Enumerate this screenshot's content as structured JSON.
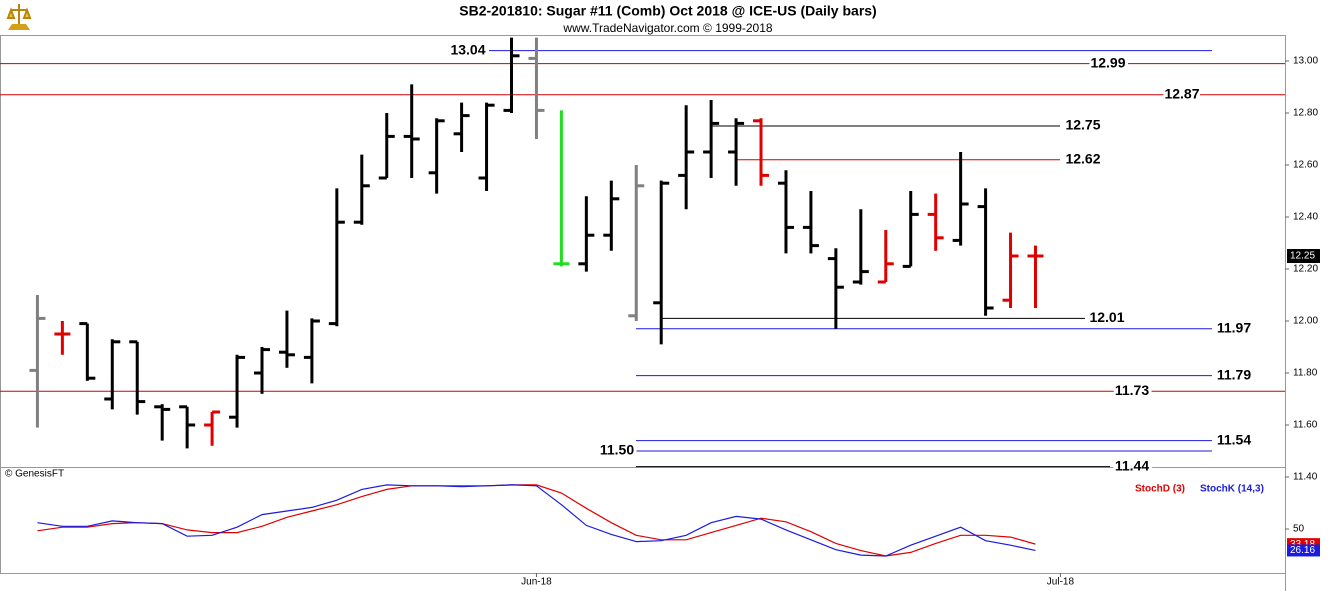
{
  "chart_data": [
    {
      "type": "ohlc",
      "title": "SB2-201810:  Sugar #11 (Comb) Oct 2018 @ ICE-US  (Daily bars)",
      "subtitle": "www.TradeNavigator.com © 1999-2018",
      "source": "© GenesisFT",
      "open": [
        11.81,
        11.95,
        11.99,
        11.7,
        11.92,
        11.67,
        11.67,
        11.6,
        11.63,
        11.8,
        11.88,
        11.86,
        11.99,
        12.38,
        12.55,
        12.71,
        12.57,
        12.72,
        12.55,
        12.81,
        13.01,
        12.22,
        12.22,
        12.33,
        12.02,
        12.07,
        12.56,
        12.65,
        12.65,
        12.77,
        12.53,
        12.36,
        12.24,
        12.15,
        12.15,
        12.21,
        12.41,
        12.31,
        12.44,
        12.08,
        12.25
      ],
      "high": [
        12.1,
        12.0,
        11.99,
        11.93,
        11.92,
        11.68,
        11.67,
        11.65,
        11.87,
        11.9,
        12.04,
        12.01,
        12.51,
        12.64,
        12.8,
        12.91,
        12.78,
        12.84,
        12.84,
        13.09,
        13.09,
        12.81,
        12.48,
        12.54,
        12.6,
        12.54,
        12.83,
        12.85,
        12.78,
        12.78,
        12.58,
        12.5,
        12.28,
        12.43,
        12.35,
        12.5,
        12.49,
        12.65,
        12.51,
        12.34,
        12.29
      ],
      "low": [
        11.59,
        11.87,
        11.77,
        11.66,
        11.64,
        11.54,
        11.51,
        11.52,
        11.59,
        11.72,
        11.82,
        11.76,
        11.98,
        12.37,
        12.55,
        12.55,
        12.49,
        12.65,
        12.5,
        12.8,
        12.7,
        12.21,
        12.19,
        12.27,
        12.0,
        11.91,
        12.43,
        12.55,
        12.52,
        12.52,
        12.26,
        12.26,
        11.97,
        12.14,
        12.15,
        12.21,
        12.27,
        12.29,
        12.02,
        12.05,
        12.05
      ],
      "close": [
        12.01,
        11.95,
        11.78,
        11.92,
        11.69,
        11.66,
        11.6,
        11.65,
        11.86,
        11.89,
        11.87,
        12.0,
        12.38,
        12.52,
        12.71,
        12.7,
        12.77,
        12.79,
        12.83,
        13.02,
        12.81,
        12.22,
        12.33,
        12.47,
        12.52,
        12.53,
        12.65,
        12.76,
        12.76,
        12.56,
        12.36,
        12.29,
        12.13,
        12.19,
        12.22,
        12.41,
        12.32,
        12.45,
        12.05,
        12.25,
        12.25
      ],
      "colors": [
        "#808080",
        "#e00000",
        "#000000",
        "#000000",
        "#000000",
        "#000000",
        "#000000",
        "#e00000",
        "#000000",
        "#000000",
        "#000000",
        "#000000",
        "#000000",
        "#000000",
        "#000000",
        "#000000",
        "#000000",
        "#000000",
        "#000000",
        "#000000",
        "#808080",
        "#22dd22",
        "#000000",
        "#000000",
        "#808080",
        "#000000",
        "#000000",
        "#000000",
        "#000000",
        "#e00000",
        "#000000",
        "#000000",
        "#000000",
        "#000000",
        "#e00000",
        "#000000",
        "#e00000",
        "#000000",
        "#000000",
        "#e00000",
        "#e00000"
      ],
      "xlim": [
        -1.5,
        50
      ],
      "ylim": [
        11.4,
        13.1
      ],
      "yticks": [
        {
          "value": 11.4,
          "label": "11.40"
        },
        {
          "value": 11.6,
          "label": "11.60"
        },
        {
          "value": 11.8,
          "label": "11.80"
        },
        {
          "value": 12.0,
          "label": "12.00"
        },
        {
          "value": 12.2,
          "label": "12.20"
        },
        {
          "value": 12.4,
          "label": "12.40"
        },
        {
          "value": 12.6,
          "label": "12.60"
        },
        {
          "value": 12.8,
          "label": "12.80"
        },
        {
          "value": 13.0,
          "label": "13.00"
        }
      ],
      "levels": [
        {
          "value": 13.04,
          "color": "#1a1ae0"
        },
        {
          "value": 12.99,
          "color": "#d00000"
        },
        {
          "value": 12.87,
          "color": "#d00000"
        },
        {
          "value": 12.75,
          "color": "#000000"
        },
        {
          "value": 12.62,
          "color": "#d00000"
        },
        {
          "value": 12.01,
          "color": "#000000"
        },
        {
          "value": 11.97,
          "color": "#1a1ae0"
        },
        {
          "value": 11.79,
          "color": "#1a1ae0"
        },
        {
          "value": 11.73,
          "color": "#d00000"
        },
        {
          "value": 11.54,
          "color": "#1a1ae0"
        },
        {
          "value": 11.5,
          "label": "11.50",
          "color": "#1a1ae0"
        },
        {
          "value": 11.44,
          "color": "#000000"
        }
      ],
      "last": 12.25
    },
    {
      "type": "line",
      "xlim": [
        -1.5,
        50
      ],
      "ylim": [
        0,
        100
      ],
      "yticks": [
        50
      ],
      "xticks": [
        {
          "value": 20,
          "label": "Jun-18"
        },
        {
          "value": 41,
          "label": "Jul-18"
        }
      ],
      "series": [
        {
          "name": "StochD (3)",
          "color": "#e00000",
          "values": [
            48,
            52,
            52,
            56,
            57,
            56,
            49,
            46,
            46,
            53,
            63,
            70,
            77,
            86,
            94,
            98,
            98,
            98,
            98,
            99,
            99,
            90,
            73,
            57,
            43,
            38,
            38,
            46,
            54,
            62,
            58,
            47,
            34,
            26,
            20,
            24,
            34,
            43,
            43,
            41,
            33.18
          ],
          "last": 33.18
        },
        {
          "name": "StochK (14,3)",
          "color": "#1a1ae0",
          "values": [
            57,
            53,
            53,
            59,
            57,
            56,
            42,
            43,
            52,
            66,
            70,
            74,
            82,
            94,
            99,
            98,
            98,
            97,
            98,
            99,
            98,
            77,
            54,
            44,
            36,
            37,
            43,
            57,
            64,
            61,
            49,
            38,
            27,
            21,
            20,
            32,
            42,
            52,
            37,
            32,
            26.16
          ],
          "last": 26.16
        }
      ]
    }
  ]
}
